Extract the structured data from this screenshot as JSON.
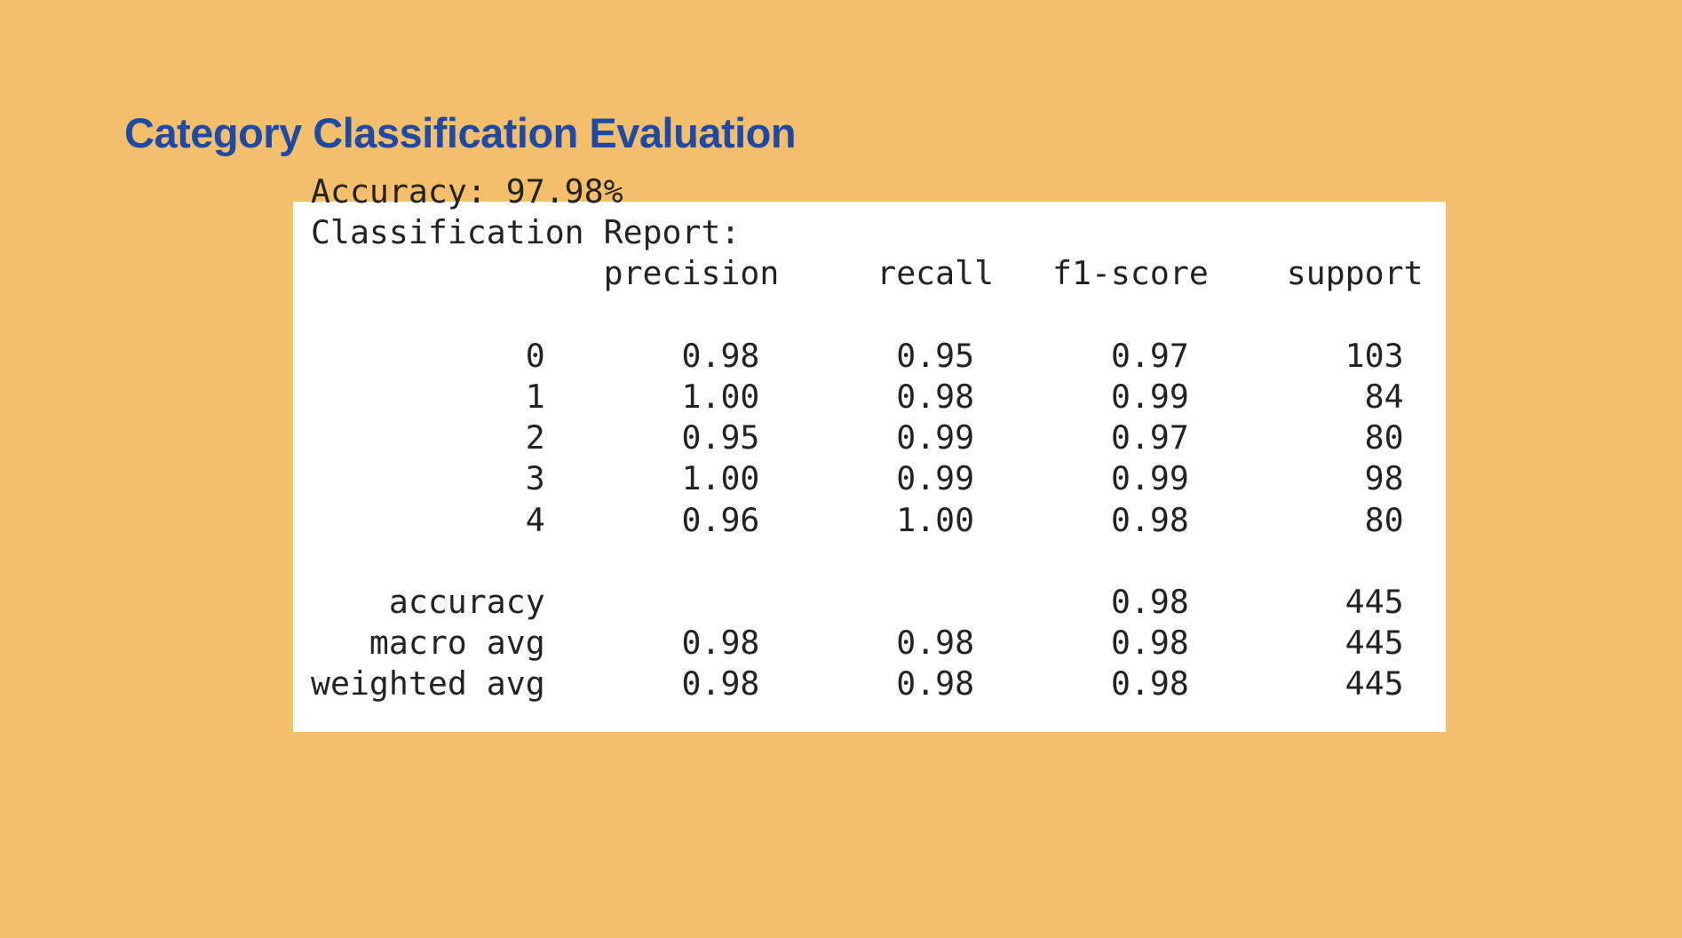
{
  "title": "Category Classification Evaluation",
  "colors": {
    "background": "#f3bf6a",
    "title": "#1e4aa6",
    "panel": "#ffffff"
  },
  "report": {
    "accuracy_line": "Accuracy: 97.98%",
    "heading": "Classification Report:",
    "columns": [
      "precision",
      "recall",
      "f1-score",
      "support"
    ],
    "rows": [
      {
        "label": "0",
        "values": [
          "0.98",
          "0.95",
          "0.97",
          "103"
        ]
      },
      {
        "label": "1",
        "values": [
          "1.00",
          "0.98",
          "0.99",
          "84"
        ]
      },
      {
        "label": "2",
        "values": [
          "0.95",
          "0.99",
          "0.97",
          "80"
        ]
      },
      {
        "label": "3",
        "values": [
          "1.00",
          "0.99",
          "0.99",
          "98"
        ]
      },
      {
        "label": "4",
        "values": [
          "0.96",
          "1.00",
          "0.98",
          "80"
        ]
      }
    ],
    "summary": [
      {
        "label": "accuracy",
        "values": [
          "",
          "",
          "0.98",
          "445"
        ]
      },
      {
        "label": "macro avg",
        "values": [
          "0.98",
          "0.98",
          "0.98",
          "445"
        ]
      },
      {
        "label": "weighted avg",
        "values": [
          "0.98",
          "0.98",
          "0.98",
          "445"
        ]
      }
    ]
  }
}
